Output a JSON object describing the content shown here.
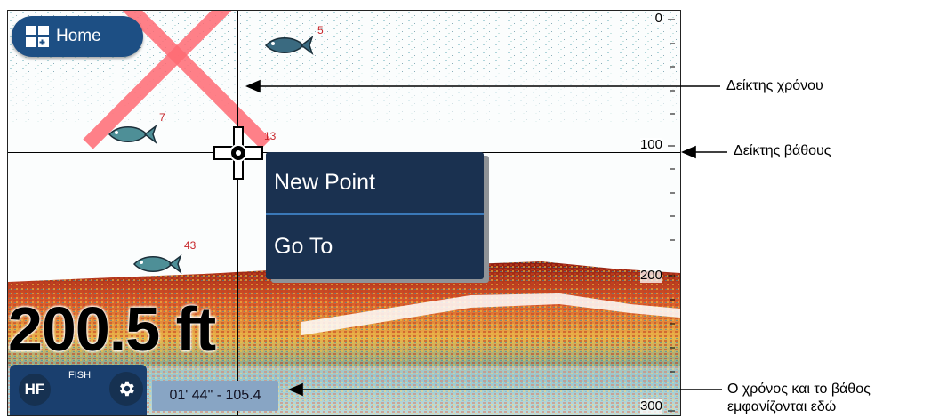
{
  "home_button": {
    "label": "Home",
    "icon": "grid-plus-icon"
  },
  "context_menu": {
    "items": [
      "New Point",
      "Go To"
    ]
  },
  "depth_readout": "200.5 ft",
  "mode_panel": {
    "frequency_label": "HF",
    "mode_label": "FISH",
    "settings_icon": "gear-icon"
  },
  "cursor_readout": "01' 44\" - 105.4",
  "depth_scale": {
    "labels": [
      "0",
      "100",
      "200",
      "300"
    ]
  },
  "fish_depths": [
    "5",
    "7",
    "13",
    "43"
  ],
  "annotations": {
    "time_marker": "Δείκτης χρόνου",
    "depth_marker": "Δείκτης βάθους",
    "readout_line1": "Ο χρόνος και το βάθος",
    "readout_line2": "εμφανίζονται εδώ"
  },
  "colors": {
    "panel_blue": "#1d4f84",
    "menu_navy": "#1a3150",
    "readout_box": "#88a5c4",
    "fish_depth_red": "#c7262b"
  }
}
